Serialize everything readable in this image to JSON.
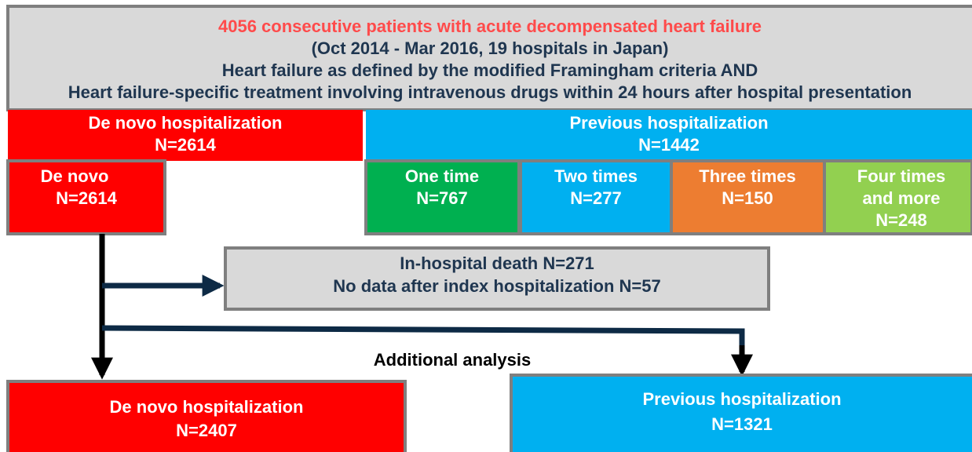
{
  "header": {
    "lines": [
      "4056 consecutive patients with acute decompensated heart failure",
      "(Oct 2014 - Mar 2016, 19 hospitals in Japan)",
      "Heart failure as defined by the modified Framingham criteria AND",
      "Heart failure-specific treatment involving intravenous drugs within 24 hours after hospital presentation"
    ]
  },
  "groups": [
    {
      "label": "De novo hospitalization",
      "n": "N=2614"
    },
    {
      "label": "Previous hospitalization",
      "n": "N=1442"
    }
  ],
  "subgroups": [
    {
      "label": "De novo",
      "n": "N=2614"
    },
    {
      "label": "One time",
      "n": "N=767"
    },
    {
      "label": "Two times",
      "n": "N=277"
    },
    {
      "label": "Three times",
      "n": "N=150"
    },
    {
      "label": "Four times",
      "label2": "and more",
      "n": "N=248"
    }
  ],
  "exclusion": {
    "lines": [
      "In-hospital death N=271",
      "No data after index hospitalization N=57"
    ]
  },
  "additional": "Additional analysis",
  "final": [
    {
      "label": "De novo hospitalization",
      "n": "N=2407"
    },
    {
      "label": "Previous hospitalization",
      "n": "N=1321"
    }
  ]
}
